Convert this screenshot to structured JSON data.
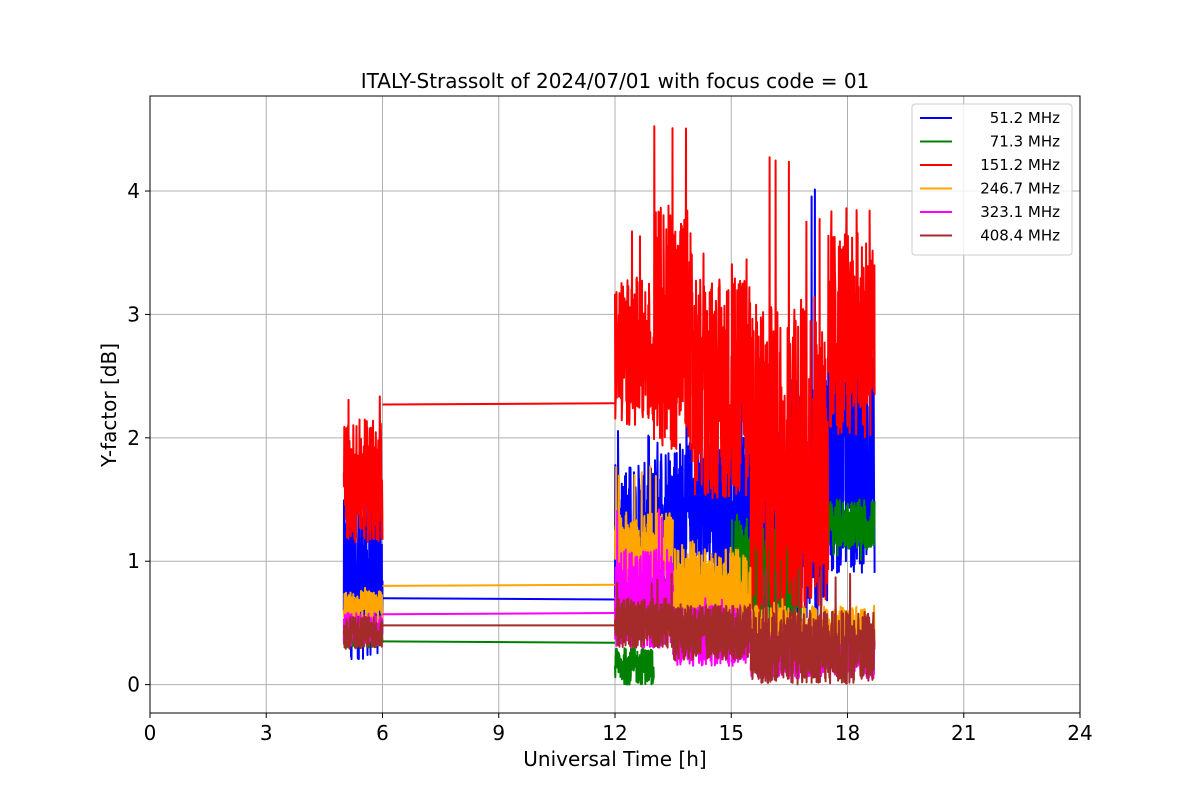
{
  "chart_data": {
    "type": "line",
    "title": "ITALY-Strassolt of 2024/07/01 with focus code = 01",
    "xlabel": "Universal Time [h]",
    "ylabel": "Y-factor [dB]",
    "xlim": [
      0,
      24
    ],
    "ylim": [
      -0.23,
      4.77
    ],
    "xticks": [
      0,
      3,
      6,
      9,
      12,
      15,
      18,
      21,
      24
    ],
    "yticks": [
      0,
      1,
      2,
      3,
      4
    ],
    "grid": true,
    "legend_position": "top-right",
    "series": [
      {
        "name": "51.2 MHz",
        "color": "#0000ff",
        "segments": [
          {
            "x_range": [
              5.0,
              6.0
            ],
            "y_min": 0.2,
            "y_max": 1.6,
            "y_mean": 0.85
          },
          {
            "x_range": [
              6.0,
              12.0
            ],
            "y_start": 0.7,
            "y_end": 0.69
          },
          {
            "x_range": [
              12.0,
              13.0
            ],
            "y_min": 0.7,
            "y_max": 2.1,
            "y_mean": 1.25
          },
          {
            "x_range": [
              13.0,
              15.5
            ],
            "y_min": 0.8,
            "y_max": 2.5,
            "y_mean": 1.4
          },
          {
            "x_range": [
              15.5,
              16.5
            ],
            "y_min": 0.3,
            "y_max": 3.1,
            "y_mean": 1.2
          },
          {
            "x_range": [
              16.5,
              17.5
            ],
            "y_min": 0.5,
            "y_max": 4.02,
            "y_mean": 1.5
          },
          {
            "x_range": [
              17.5,
              18.7
            ],
            "y_min": 0.9,
            "y_max": 2.9,
            "y_mean": 1.8
          }
        ]
      },
      {
        "name": "71.3 MHz",
        "color": "#008000",
        "segments": [
          {
            "x_range": [
              5.0,
              6.0
            ],
            "y_min": 0.3,
            "y_max": 0.45,
            "y_mean": 0.37
          },
          {
            "x_range": [
              6.0,
              12.0
            ],
            "y_start": 0.35,
            "y_end": 0.34
          },
          {
            "x_range": [
              12.0,
              13.0
            ],
            "y_min": 0.0,
            "y_max": 0.3,
            "y_mean": 0.15
          },
          {
            "x_range": [
              13.0,
              15.0
            ],
            "y_min": 0.3,
            "y_max": 0.95,
            "y_mean": 0.7
          },
          {
            "x_range": [
              15.0,
              16.8
            ],
            "y_min": 0.4,
            "y_max": 1.4,
            "y_mean": 0.9
          },
          {
            "x_range": [
              16.8,
              18.7
            ],
            "y_min": 1.0,
            "y_max": 1.5,
            "y_mean": 1.3
          }
        ]
      },
      {
        "name": "151.2 MHz",
        "color": "#ff0000",
        "segments": [
          {
            "x_range": [
              5.0,
              6.0
            ],
            "y_min": 1.15,
            "y_max": 2.37,
            "y_mean": 1.65
          },
          {
            "x_range": [
              6.0,
              12.0
            ],
            "y_start": 2.27,
            "y_end": 2.28
          },
          {
            "x_range": [
              12.0,
              13.0
            ],
            "y_min": 2.1,
            "y_max": 3.7,
            "y_mean": 2.7
          },
          {
            "x_range": [
              13.0,
              14.0
            ],
            "y_min": 1.9,
            "y_max": 4.53,
            "y_mean": 2.9
          },
          {
            "x_range": [
              14.0,
              15.5
            ],
            "y_min": 1.5,
            "y_max": 3.5,
            "y_mean": 2.4
          },
          {
            "x_range": [
              15.5,
              16.5
            ],
            "y_min": 0.5,
            "y_max": 4.31,
            "y_mean": 1.8
          },
          {
            "x_range": [
              16.5,
              17.5
            ],
            "y_min": 0.6,
            "y_max": 3.8,
            "y_mean": 1.9
          },
          {
            "x_range": [
              17.5,
              18.7
            ],
            "y_min": 2.0,
            "y_max": 3.9,
            "y_mean": 2.85
          }
        ]
      },
      {
        "name": "246.7 MHz",
        "color": "#ffa500",
        "segments": [
          {
            "x_range": [
              5.0,
              6.0
            ],
            "y_min": 0.5,
            "y_max": 0.8,
            "y_mean": 0.63
          },
          {
            "x_range": [
              6.0,
              12.0
            ],
            "y_start": 0.8,
            "y_end": 0.81
          },
          {
            "x_range": [
              12.0,
              13.5
            ],
            "y_min": 0.7,
            "y_max": 1.78,
            "y_mean": 1.05
          },
          {
            "x_range": [
              13.5,
              15.5
            ],
            "y_min": 0.4,
            "y_max": 1.2,
            "y_mean": 0.75
          },
          {
            "x_range": [
              15.5,
              18.7
            ],
            "y_min": 0.2,
            "y_max": 0.7,
            "y_mean": 0.42
          }
        ]
      },
      {
        "name": "323.1 MHz",
        "color": "#ff00ff",
        "segments": [
          {
            "x_range": [
              5.0,
              6.0
            ],
            "y_min": 0.3,
            "y_max": 0.58,
            "y_mean": 0.45
          },
          {
            "x_range": [
              6.0,
              12.0
            ],
            "y_start": 0.57,
            "y_end": 0.58
          },
          {
            "x_range": [
              12.0,
              13.5
            ],
            "y_min": 0.3,
            "y_max": 1.45,
            "y_mean": 0.7
          },
          {
            "x_range": [
              13.5,
              15.5
            ],
            "y_min": 0.15,
            "y_max": 0.7,
            "y_mean": 0.4
          },
          {
            "x_range": [
              15.5,
              18.7
            ],
            "y_min": 0.05,
            "y_max": 0.4,
            "y_mean": 0.22
          }
        ]
      },
      {
        "name": "408.4 MHz",
        "color": "#a52a2a",
        "segments": [
          {
            "x_range": [
              5.0,
              6.0
            ],
            "y_min": 0.28,
            "y_max": 0.55,
            "y_mean": 0.42
          },
          {
            "x_range": [
              6.0,
              12.0
            ],
            "y_start": 0.48,
            "y_end": 0.48
          },
          {
            "x_range": [
              12.0,
              13.5
            ],
            "y_min": 0.3,
            "y_max": 0.9,
            "y_mean": 0.5
          },
          {
            "x_range": [
              13.5,
              15.5
            ],
            "y_min": 0.2,
            "y_max": 0.7,
            "y_mean": 0.42
          },
          {
            "x_range": [
              15.5,
              18.7
            ],
            "y_min": 0.0,
            "y_max": 0.95,
            "y_mean": 0.3
          }
        ]
      }
    ]
  }
}
